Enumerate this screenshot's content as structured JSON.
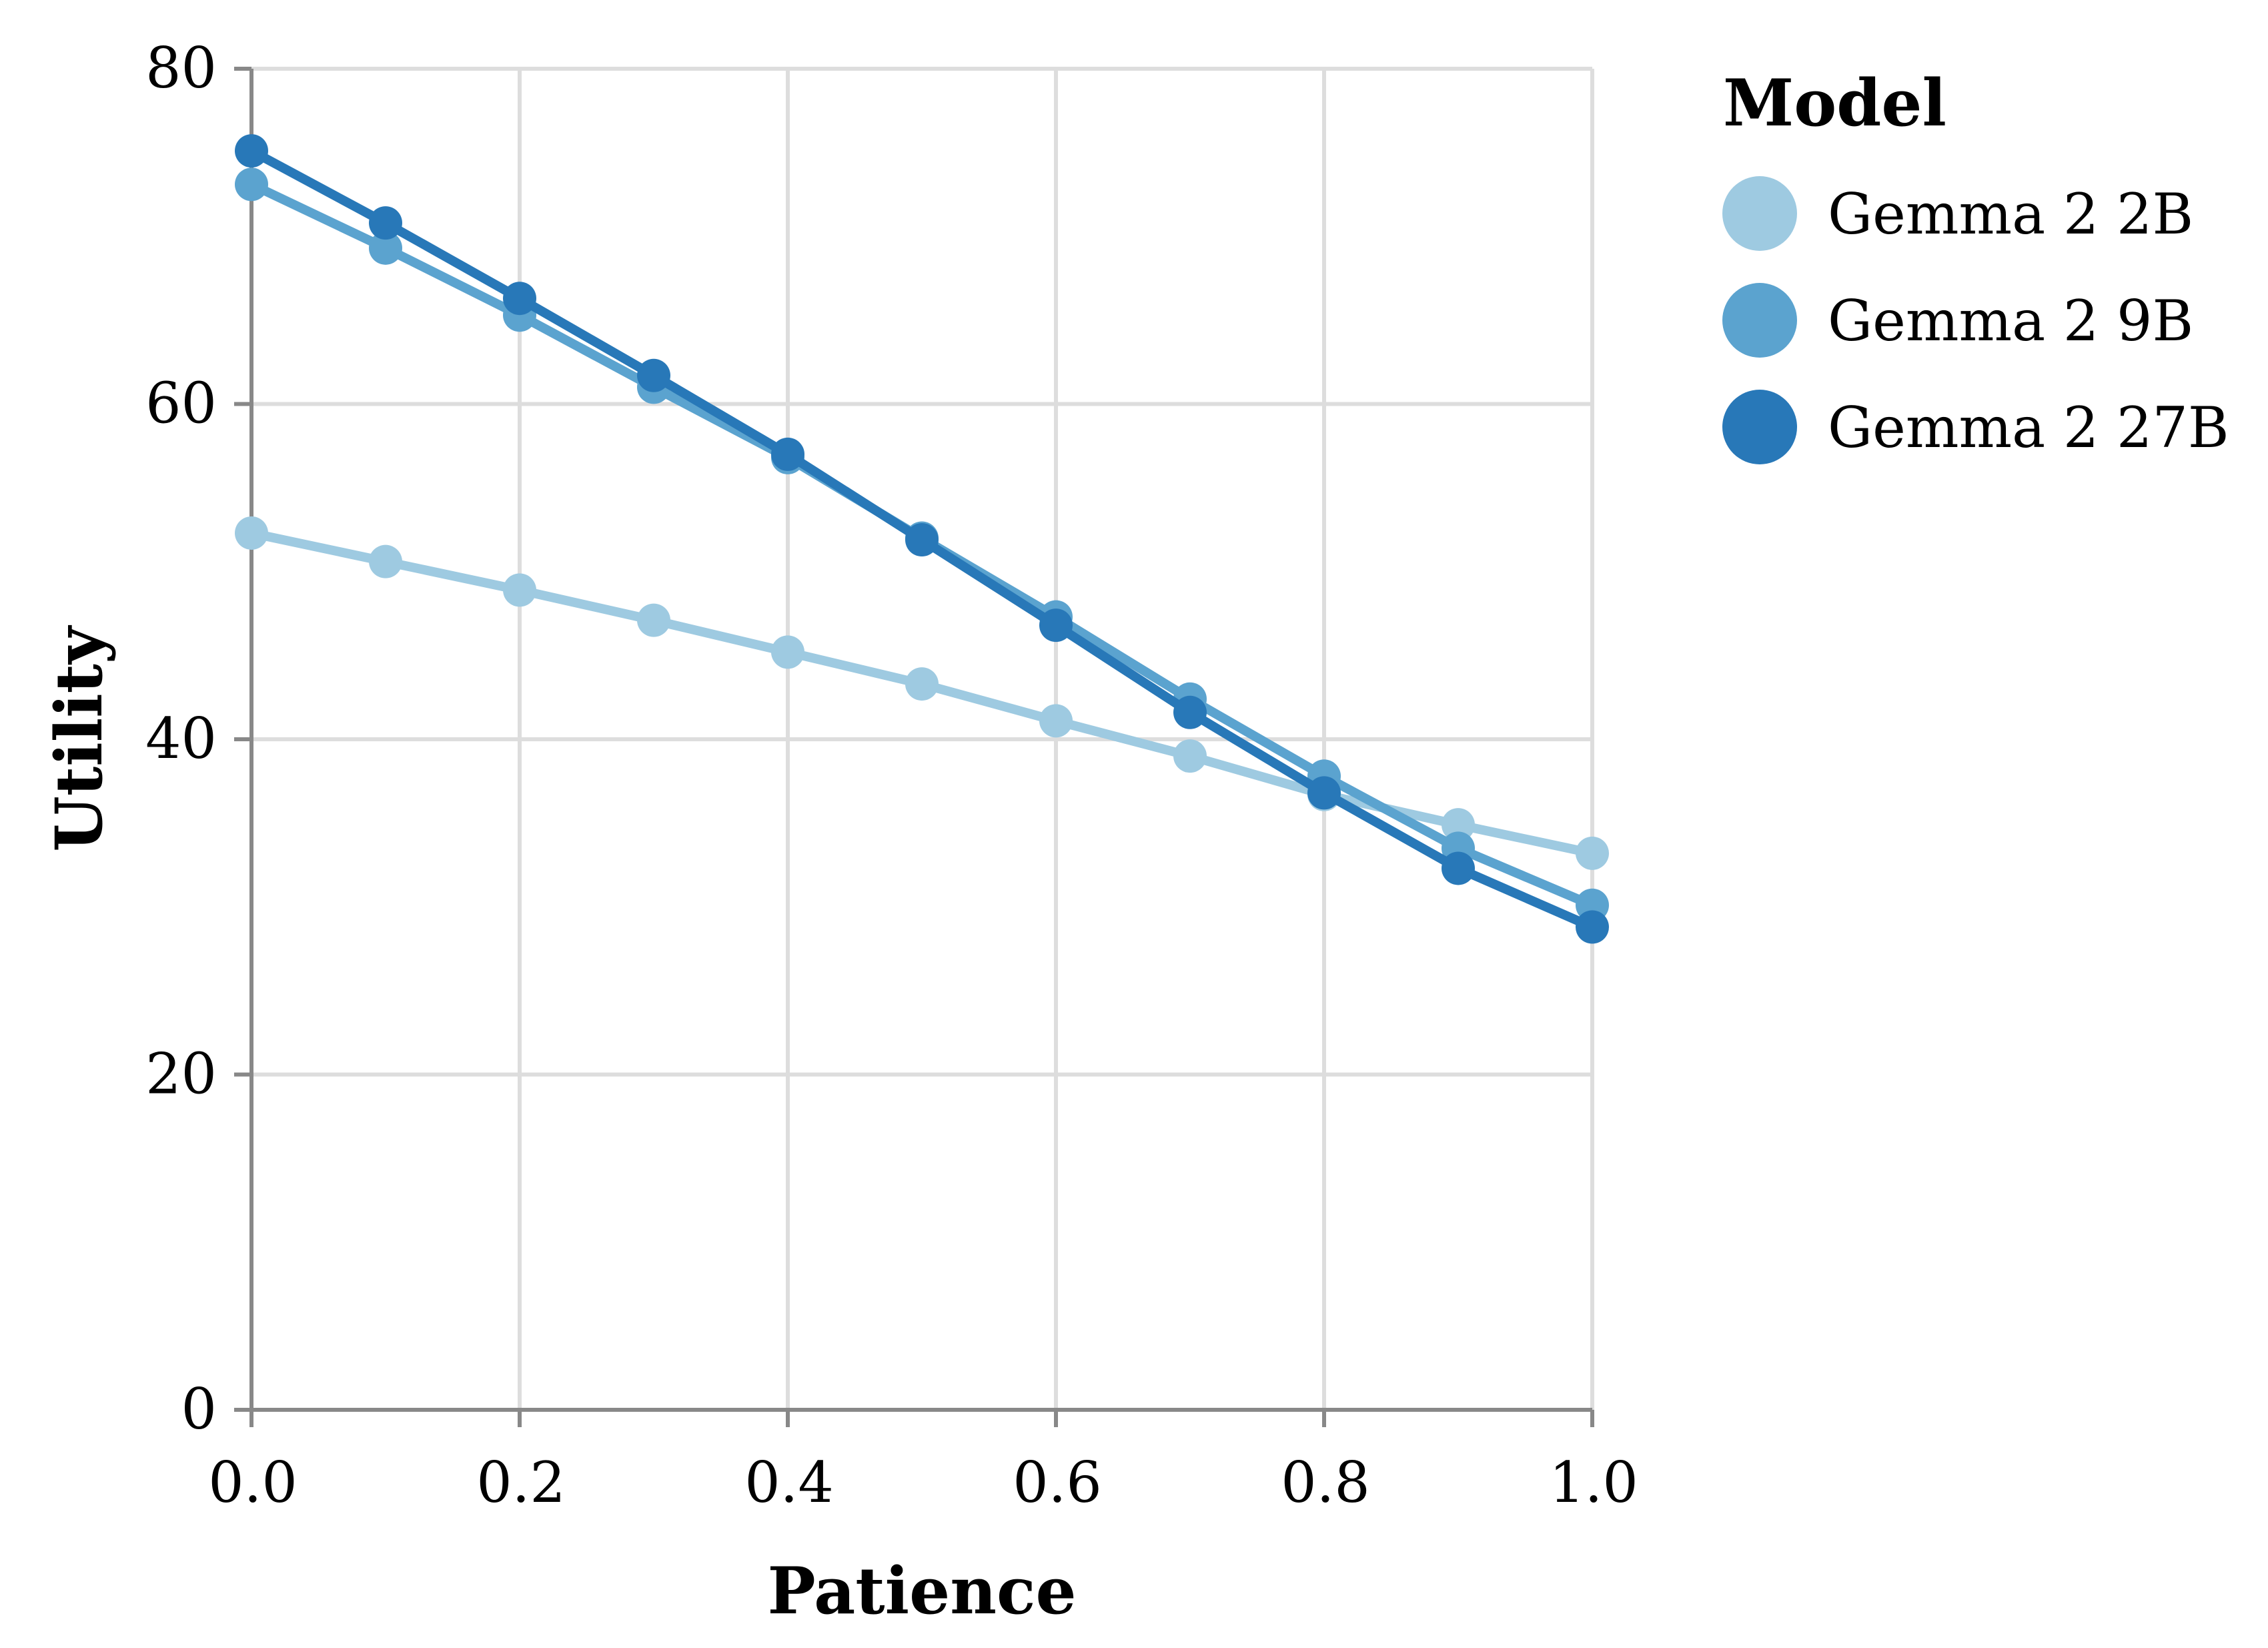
{
  "chart_data": {
    "type": "line",
    "xlabel": "Patience",
    "ylabel": "Utility",
    "xlim": [
      0,
      1
    ],
    "ylim": [
      0,
      80
    ],
    "x_ticks": [
      "0.0",
      "0.2",
      "0.4",
      "0.6",
      "0.8",
      "1.0"
    ],
    "y_ticks": [
      "0",
      "20",
      "40",
      "60",
      "80"
    ],
    "grid": true,
    "legend": {
      "title": "Model",
      "position": "top-right"
    },
    "x": [
      0.0,
      0.1,
      0.2,
      0.3,
      0.4,
      0.5,
      0.6,
      0.7,
      0.8,
      0.9,
      1.0
    ],
    "series": [
      {
        "name": "Gemma 2 2B",
        "color": "#9ecae1",
        "values": [
          52.3,
          50.6,
          48.9,
          47.1,
          45.2,
          43.3,
          41.1,
          39.0,
          36.7,
          34.9,
          33.2
        ]
      },
      {
        "name": "Gemma 2 9B",
        "color": "#5ba3cf",
        "values": [
          73.1,
          69.3,
          65.3,
          61.0,
          56.8,
          52.0,
          47.3,
          42.4,
          37.8,
          33.5,
          30.1
        ]
      },
      {
        "name": "Gemma 2 27B",
        "color": "#2878b8",
        "values": [
          75.1,
          70.8,
          66.3,
          61.7,
          57.0,
          51.9,
          46.8,
          41.6,
          36.8,
          32.3,
          28.8
        ]
      }
    ]
  }
}
